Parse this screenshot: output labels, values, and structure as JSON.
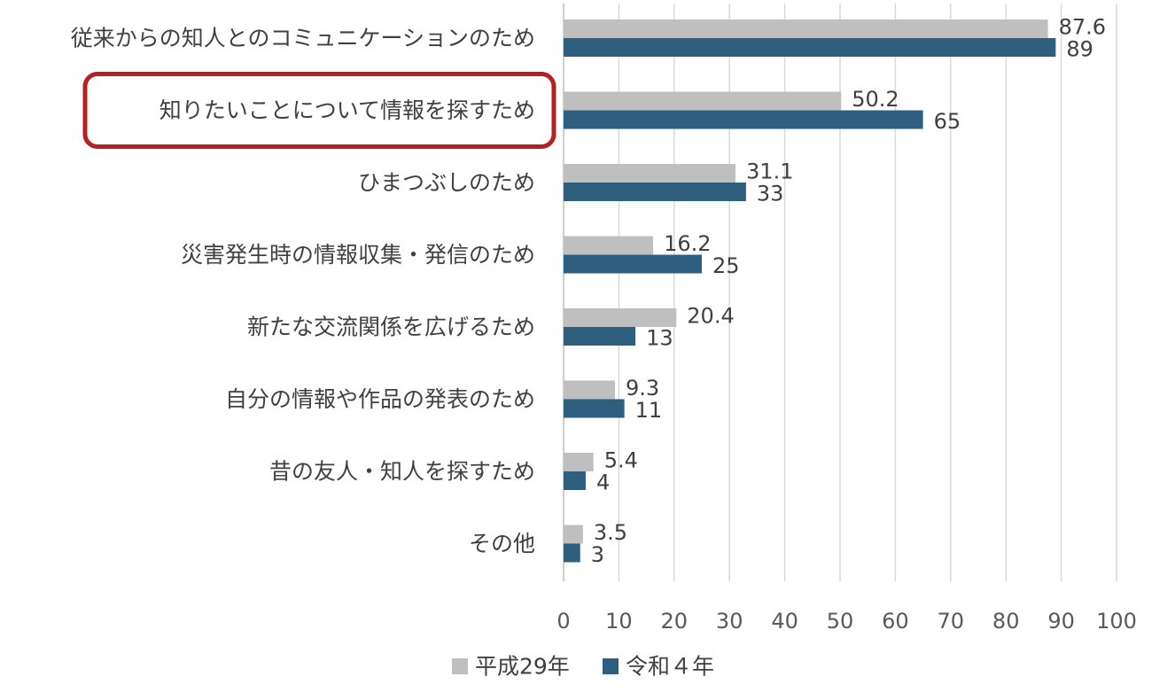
{
  "chart_data": {
    "type": "bar",
    "orientation": "horizontal",
    "categories": [
      "従来からの知人とのコミュニケーションのため",
      "知りたいことについて情報を探すため",
      "ひまつぶしのため",
      "災害発生時の情報収集・発信のため",
      "新たな交流関係を広げるため",
      "自分の情報や作品の発表のため",
      "昔の友人・知人を探すため",
      "その他"
    ],
    "series": [
      {
        "name": "平成29年",
        "color": "#bfbfbf",
        "values": [
          87.6,
          50.2,
          31.1,
          16.2,
          20.4,
          9.3,
          5.4,
          3.5
        ],
        "labels": [
          "87.6",
          "50.2",
          "31.1",
          "16.2",
          "20.4",
          "9.3",
          "5.4",
          "3.5"
        ]
      },
      {
        "name": "令和４年",
        "color": "#2e5f7f",
        "values": [
          89,
          65,
          33,
          25,
          13,
          11,
          4,
          3
        ],
        "labels": [
          "89",
          "65",
          "33",
          "25",
          "13",
          "11",
          "4",
          "3"
        ]
      }
    ],
    "xlim": [
      0,
      100
    ],
    "xticks": [
      0,
      10,
      20,
      30,
      40,
      50,
      60,
      70,
      80,
      90,
      100
    ],
    "xtick_labels": [
      "0",
      "10",
      "20",
      "30",
      "40",
      "50",
      "60",
      "70",
      "80",
      "90",
      "100"
    ],
    "grid": "vertical",
    "legend_position": "bottom",
    "highlight": {
      "category": "知りたいことについて情報を探すため",
      "color": "#b22222"
    },
    "colors": {
      "text": "#404040",
      "tick_text": "#595959",
      "gridline": "#d9d9d9"
    }
  }
}
